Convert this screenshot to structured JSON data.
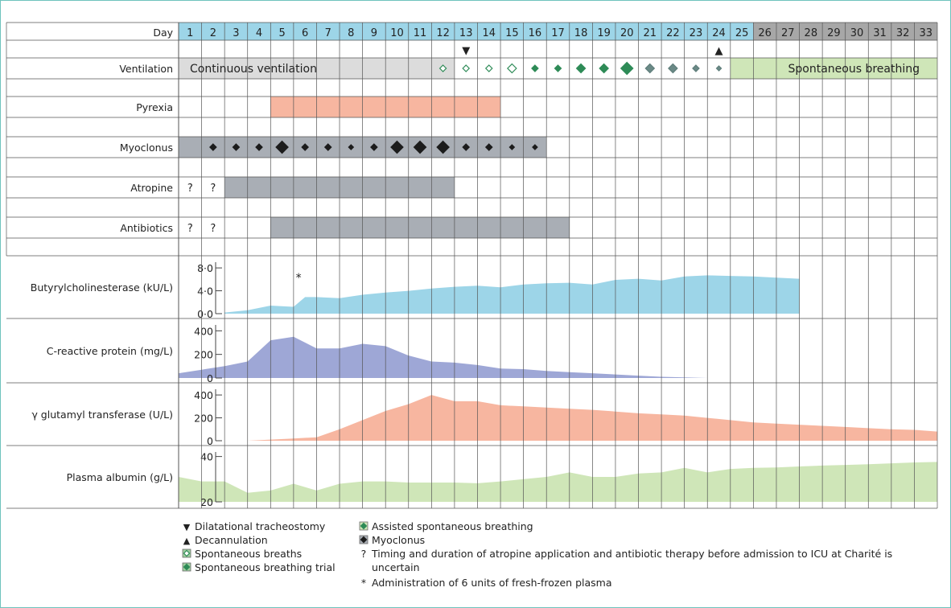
{
  "chart_data": {
    "type": "timeline",
    "day_label": "Day",
    "days": [
      1,
      2,
      3,
      4,
      5,
      6,
      7,
      8,
      9,
      10,
      11,
      12,
      13,
      14,
      15,
      16,
      17,
      18,
      19,
      20,
      21,
      22,
      23,
      24,
      25,
      26,
      27,
      28,
      29,
      30,
      31,
      32,
      33
    ],
    "day_header_colors": {
      "early": "#9dd5e8",
      "late": "#a7a7a7",
      "late_from_day": 26
    },
    "event_markers": [
      {
        "day": 13,
        "symbol": "▼",
        "meaning": "Dilatational tracheostomy"
      },
      {
        "day": 24,
        "symbol": "▲",
        "meaning": "Decannulation"
      }
    ],
    "ventilation": {
      "label": "Ventilation",
      "continuous": {
        "text": "Continuous ventilation",
        "from_day": 1,
        "to_day": 12,
        "color": "#dcdcdc"
      },
      "spontaneous": {
        "text": "Spontaneous breathing",
        "from_day": 25,
        "to_day": 33,
        "color": "#cfe6b8"
      },
      "symbols": [
        {
          "day": 12,
          "kind": "spontaneous-breaths",
          "size": "s"
        },
        {
          "day": 13,
          "kind": "spontaneous-breaths",
          "size": "s"
        },
        {
          "day": 14,
          "kind": "spontaneous-breaths",
          "size": "s"
        },
        {
          "day": 15,
          "kind": "spontaneous-breaths",
          "size": "m"
        },
        {
          "day": 16,
          "kind": "spontaneous-breathing-trial",
          "size": "s"
        },
        {
          "day": 17,
          "kind": "spontaneous-breathing-trial",
          "size": "s"
        },
        {
          "day": 18,
          "kind": "spontaneous-breathing-trial",
          "size": "m"
        },
        {
          "day": 19,
          "kind": "spontaneous-breathing-trial",
          "size": "m"
        },
        {
          "day": 20,
          "kind": "spontaneous-breathing-trial",
          "size": "l"
        },
        {
          "day": 21,
          "kind": "assisted-spontaneous-breathing",
          "size": "m"
        },
        {
          "day": 22,
          "kind": "assisted-spontaneous-breathing",
          "size": "m"
        },
        {
          "day": 23,
          "kind": "assisted-spontaneous-breathing",
          "size": "s"
        },
        {
          "day": 24,
          "kind": "assisted-spontaneous-breathing",
          "size": "xs"
        }
      ]
    },
    "pyrexia": {
      "label": "Pyrexia",
      "from_day": 5,
      "to_day": 14,
      "color": "#f7b6a0"
    },
    "myoclonus": {
      "label": "Myoclonus",
      "from_day": 1,
      "to_day": 16,
      "color": "#a9aeb5",
      "symbols": [
        {
          "day": 2,
          "size": "s"
        },
        {
          "day": 3,
          "size": "s"
        },
        {
          "day": 4,
          "size": "s"
        },
        {
          "day": 5,
          "size": "l"
        },
        {
          "day": 6,
          "size": "s"
        },
        {
          "day": 7,
          "size": "s"
        },
        {
          "day": 8,
          "size": "xs"
        },
        {
          "day": 9,
          "size": "s"
        },
        {
          "day": 10,
          "size": "l"
        },
        {
          "day": 11,
          "size": "l"
        },
        {
          "day": 12,
          "size": "l"
        },
        {
          "day": 13,
          "size": "s"
        },
        {
          "day": 14,
          "size": "s"
        },
        {
          "day": 15,
          "size": "xs"
        },
        {
          "day": 16,
          "size": "xs"
        }
      ]
    },
    "atropine": {
      "label": "Atropine",
      "from_day": 3,
      "to_day": 12,
      "color": "#a9aeb5",
      "uncertain_days": [
        1,
        2
      ],
      "uncertain_mark": "?"
    },
    "antibiotics": {
      "label": "Antibiotics",
      "from_day": 5,
      "to_day": 17,
      "color": "#a9aeb5",
      "uncertain_days": [
        1,
        2
      ],
      "uncertain_mark": "?"
    },
    "lab_series": [
      {
        "name": "Butyrylcholinesterase (kU/L)",
        "color": "#9dd5e8",
        "ticks": [
          "8·0",
          "4·0",
          "0·0"
        ],
        "tick_values": [
          8,
          4,
          0
        ],
        "ylim": [
          0,
          9
        ],
        "annotation": {
          "text": "*",
          "day": 6
        },
        "points": [
          [
            3,
            0.2
          ],
          [
            4,
            0.6
          ],
          [
            5,
            1.4
          ],
          [
            6,
            1.2
          ],
          [
            6.5,
            2.9
          ],
          [
            7,
            2.9
          ],
          [
            8,
            2.7
          ],
          [
            9,
            3.3
          ],
          [
            10,
            3.7
          ],
          [
            11,
            4.0
          ],
          [
            12,
            4.4
          ],
          [
            13,
            4.7
          ],
          [
            14,
            4.9
          ],
          [
            15,
            4.6
          ],
          [
            16,
            5.1
          ],
          [
            17,
            5.3
          ],
          [
            18,
            5.4
          ],
          [
            19,
            5.1
          ],
          [
            20,
            5.9
          ],
          [
            21,
            6.1
          ],
          [
            22,
            5.8
          ],
          [
            23,
            6.5
          ],
          [
            24,
            6.7
          ],
          [
            25,
            6.6
          ],
          [
            26,
            6.5
          ],
          [
            27,
            6.3
          ],
          [
            28,
            6.1
          ]
        ]
      },
      {
        "name": "C-reactive protein (mg/L)",
        "color": "#9ea7d6",
        "ticks": [
          "400",
          "200",
          "0"
        ],
        "tick_values": [
          400,
          200,
          0
        ],
        "ylim": [
          0,
          450
        ],
        "points": [
          [
            1,
            40
          ],
          [
            2,
            70
          ],
          [
            3,
            100
          ],
          [
            4,
            140
          ],
          [
            5,
            320
          ],
          [
            6,
            350
          ],
          [
            7,
            250
          ],
          [
            8,
            250
          ],
          [
            9,
            290
          ],
          [
            10,
            270
          ],
          [
            11,
            190
          ],
          [
            12,
            140
          ],
          [
            13,
            130
          ],
          [
            14,
            110
          ],
          [
            15,
            80
          ],
          [
            16,
            75
          ],
          [
            17,
            60
          ],
          [
            18,
            50
          ],
          [
            19,
            40
          ],
          [
            20,
            30
          ],
          [
            21,
            20
          ],
          [
            22,
            10
          ],
          [
            23,
            5
          ],
          [
            24,
            0
          ]
        ]
      },
      {
        "name": "γ glutamyl transferase (U/L)",
        "color": "#f7b6a0",
        "ticks": [
          "400",
          "200",
          "0"
        ],
        "tick_values": [
          400,
          200,
          0
        ],
        "ylim": [
          0,
          450
        ],
        "points": [
          [
            1,
            0
          ],
          [
            2,
            0
          ],
          [
            3,
            0
          ],
          [
            4,
            0
          ],
          [
            5,
            10
          ],
          [
            6,
            20
          ],
          [
            7,
            30
          ],
          [
            8,
            100
          ],
          [
            9,
            180
          ],
          [
            10,
            260
          ],
          [
            11,
            320
          ],
          [
            12,
            400
          ],
          [
            13,
            345
          ],
          [
            14,
            345
          ],
          [
            15,
            310
          ],
          [
            16,
            300
          ],
          [
            17,
            290
          ],
          [
            18,
            280
          ],
          [
            19,
            270
          ],
          [
            20,
            255
          ],
          [
            21,
            240
          ],
          [
            22,
            230
          ],
          [
            23,
            220
          ],
          [
            24,
            200
          ],
          [
            25,
            180
          ],
          [
            26,
            160
          ],
          [
            27,
            150
          ],
          [
            28,
            140
          ],
          [
            29,
            130
          ],
          [
            30,
            120
          ],
          [
            31,
            110
          ],
          [
            32,
            100
          ],
          [
            33,
            95
          ],
          [
            34,
            80
          ]
        ]
      },
      {
        "name": "Plasma albumin (g/L)",
        "color": "#cfe6b8",
        "ticks": [
          "40",
          "20"
        ],
        "tick_values": [
          40,
          20
        ],
        "ylim": [
          20,
          42
        ],
        "points": [
          [
            1,
            31
          ],
          [
            2,
            29
          ],
          [
            3,
            29
          ],
          [
            4,
            24
          ],
          [
            5,
            25
          ],
          [
            6,
            28
          ],
          [
            7,
            25
          ],
          [
            8,
            28
          ],
          [
            9,
            29
          ],
          [
            10,
            29
          ],
          [
            11,
            28.5
          ],
          [
            12,
            28.5
          ],
          [
            13,
            28.5
          ],
          [
            14,
            28.2
          ],
          [
            15,
            29
          ],
          [
            16,
            30
          ],
          [
            17,
            31
          ],
          [
            18,
            33
          ],
          [
            19,
            31
          ],
          [
            20,
            31
          ],
          [
            21,
            32.5
          ],
          [
            22,
            33
          ],
          [
            23,
            35
          ],
          [
            24,
            33
          ],
          [
            25,
            34.5
          ],
          [
            26,
            35
          ],
          [
            27,
            35.2
          ],
          [
            28,
            35.6
          ],
          [
            29,
            36
          ],
          [
            30,
            36.3
          ],
          [
            31,
            36.6
          ],
          [
            32,
            37
          ],
          [
            33,
            37.4
          ],
          [
            34,
            37.6
          ]
        ]
      }
    ]
  },
  "legend": {
    "col1": [
      {
        "symbol": "▼",
        "text": "Dilatational tracheostomy"
      },
      {
        "symbol": "▲",
        "text": "Decannulation"
      },
      {
        "symbol": "spontaneous-breaths",
        "text": "Spontaneous breaths"
      },
      {
        "symbol": "spontaneous-breathing-trial",
        "text": "Spontaneous breathing trial"
      }
    ],
    "col2": [
      {
        "symbol": "assisted-spontaneous-breathing",
        "text": "Assisted spontaneous breathing"
      },
      {
        "symbol": "myoclonus-diamond",
        "text": "Myoclonus"
      }
    ],
    "notes": [
      {
        "mark": "?",
        "lines": [
          "Timing and duration of atropine application and antibiotic therapy before admission to ICU at Charité is",
          "uncertain"
        ]
      },
      {
        "mark": "*",
        "lines": [
          "Administration of 6 units of fresh-frozen plasma"
        ]
      }
    ]
  }
}
